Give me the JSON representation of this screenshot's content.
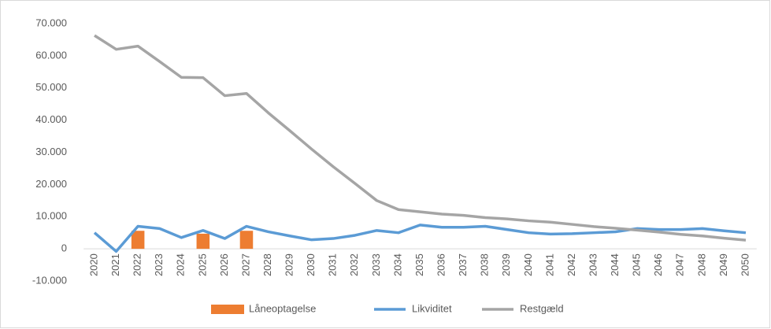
{
  "chart_data": {
    "type": "bar-line",
    "categories": [
      "2020",
      "2021",
      "2022",
      "2023",
      "2024",
      "2025",
      "2026",
      "2027",
      "2028",
      "2029",
      "2030",
      "2031",
      "2032",
      "2033",
      "2034",
      "2035",
      "2036",
      "2037",
      "2038",
      "2039",
      "2040",
      "2041",
      "2042",
      "2043",
      "2044",
      "2045",
      "2046",
      "2047",
      "2048",
      "2049",
      "2050"
    ],
    "series": [
      {
        "name": "Låneoptagelse",
        "type": "bar",
        "color": "#ed7d31",
        "values": [
          0,
          0,
          5600,
          0,
          0,
          4700,
          0,
          5600,
          0,
          0,
          0,
          0,
          0,
          0,
          0,
          0,
          0,
          0,
          0,
          0,
          0,
          0,
          0,
          0,
          0,
          0,
          0,
          0,
          0,
          0,
          0
        ]
      },
      {
        "name": "Likviditet",
        "type": "line",
        "color": "#5b9bd5",
        "values": [
          5000,
          -800,
          7000,
          6300,
          3500,
          5700,
          3200,
          7000,
          5300,
          4000,
          2800,
          3200,
          4200,
          5700,
          5000,
          7400,
          6700,
          6700,
          7000,
          6000,
          5000,
          4600,
          4700,
          5000,
          5300,
          6300,
          6000,
          6000,
          6300,
          5600,
          5000
        ]
      },
      {
        "name": "Restgæld",
        "type": "line",
        "color": "#a5a5a5",
        "values": [
          66300,
          62000,
          63000,
          58200,
          53300,
          53200,
          47600,
          48300,
          42300,
          36700,
          31000,
          25500,
          20300,
          15000,
          12200,
          11500,
          10800,
          10400,
          9700,
          9300,
          8700,
          8300,
          7600,
          6900,
          6400,
          5800,
          5200,
          4500,
          4000,
          3300,
          2700
        ]
      }
    ],
    "ylim": [
      -10000,
      70000
    ],
    "yticks": [
      {
        "value": -10000,
        "label": "-10.000"
      },
      0,
      {
        "value": 10000,
        "label": "10.000"
      },
      {
        "value": 20000,
        "label": "20.000"
      },
      {
        "value": 30000,
        "label": "30.000"
      },
      {
        "value": 40000,
        "label": "40.000"
      },
      {
        "value": 50000,
        "label": "50.000"
      },
      {
        "value": 60000,
        "label": "60.000"
      },
      {
        "value": 70000,
        "label": "70.000"
      }
    ],
    "grid": false,
    "legend": "bottom"
  }
}
